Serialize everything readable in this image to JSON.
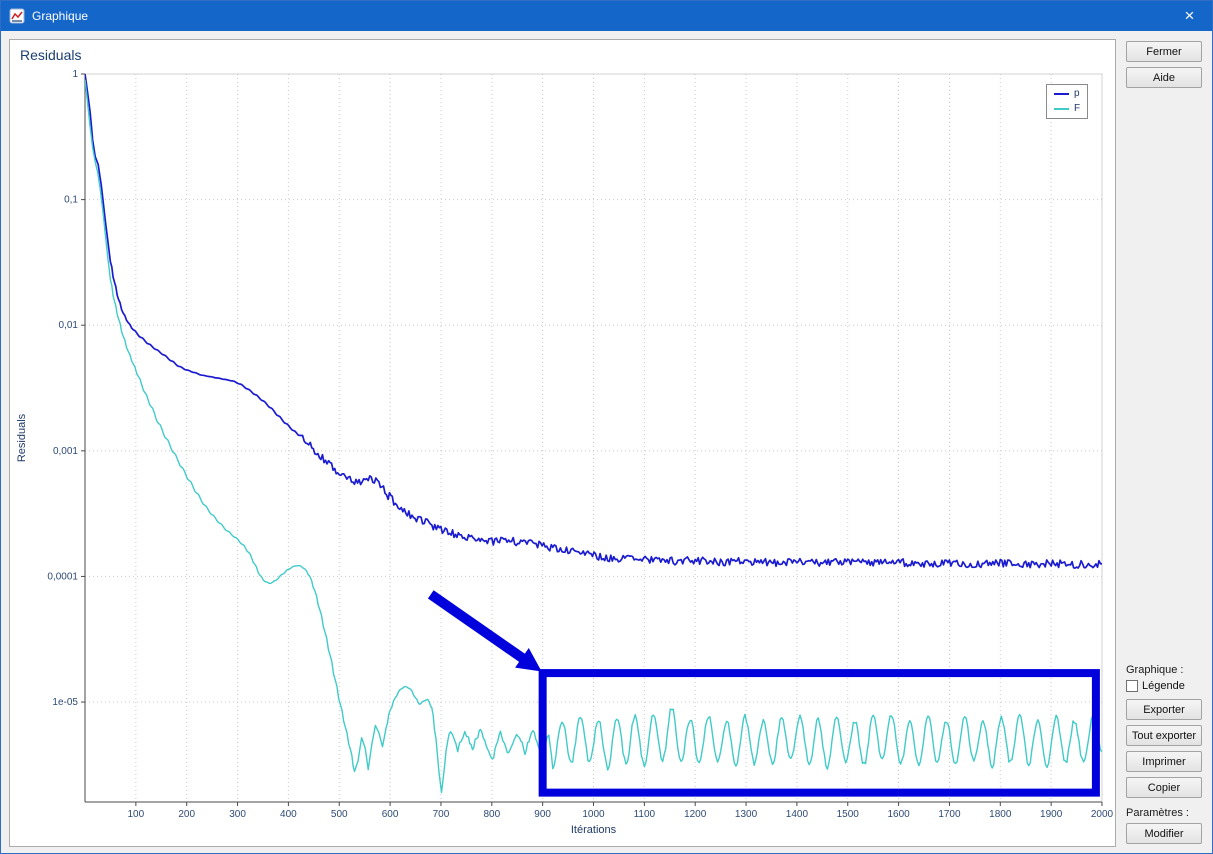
{
  "window": {
    "title": "Graphique",
    "close_glyph": "×"
  },
  "chart": {
    "title": "Residuals"
  },
  "sidebar": {
    "close_button": "Fermer",
    "help_button": "Aide",
    "graph_group_label": "Graphique :",
    "legend_checkbox_label": "Légende",
    "legend_checkbox_checked": false,
    "export_button": "Exporter",
    "export_all_button": "Tout exporter",
    "print_button": "Imprimer",
    "copy_button": "Copier",
    "params_group_label": "Paramètres :",
    "modify_button": "Modifier"
  },
  "chart_data": {
    "type": "line",
    "title": "Residuals",
    "xlabel": "Itérations",
    "ylabel": "Residuals",
    "y_scale": "log",
    "grid": "dotted",
    "legend_position": "top-right",
    "xlim": [
      0,
      2000
    ],
    "ylim": [
      1.6e-06,
      1
    ],
    "x_ticks": [
      100,
      200,
      300,
      400,
      500,
      600,
      700,
      800,
      900,
      1000,
      1100,
      1200,
      1300,
      1400,
      1500,
      1600,
      1700,
      1800,
      1900,
      2000
    ],
    "y_ticks": [
      {
        "value": 1,
        "label": "1"
      },
      {
        "value": 0.1,
        "label": "0,1"
      },
      {
        "value": 0.01,
        "label": "0,01"
      },
      {
        "value": 0.001,
        "label": "0,001"
      },
      {
        "value": 0.0001,
        "label": "0,0001"
      },
      {
        "value": 1e-05,
        "label": "1e-05"
      }
    ],
    "noise": {
      "p": {
        "start": 420,
        "amplitude": 0.07
      },
      "F": {
        "start": 700,
        "amplitude": 0.05
      }
    },
    "series": [
      {
        "name": "p",
        "color": "#1b1bd0",
        "points": [
          [
            0,
            1
          ],
          [
            5,
            0.72
          ],
          [
            10,
            0.5
          ],
          [
            15,
            0.3
          ],
          [
            20,
            0.22
          ],
          [
            26,
            0.19
          ],
          [
            32,
            0.13
          ],
          [
            38,
            0.08
          ],
          [
            44,
            0.05
          ],
          [
            50,
            0.032
          ],
          [
            58,
            0.022
          ],
          [
            66,
            0.016
          ],
          [
            75,
            0.0125
          ],
          [
            85,
            0.0105
          ],
          [
            95,
            0.0092
          ],
          [
            110,
            0.008
          ],
          [
            125,
            0.0071
          ],
          [
            140,
            0.0064
          ],
          [
            155,
            0.0058
          ],
          [
            170,
            0.0052
          ],
          [
            185,
            0.0047
          ],
          [
            200,
            0.0044
          ],
          [
            215,
            0.0042
          ],
          [
            230,
            0.004
          ],
          [
            245,
            0.0039
          ],
          [
            260,
            0.0038
          ],
          [
            275,
            0.0037
          ],
          [
            290,
            0.0036
          ],
          [
            305,
            0.0034
          ],
          [
            320,
            0.0031
          ],
          [
            335,
            0.0028
          ],
          [
            350,
            0.0025
          ],
          [
            365,
            0.0022
          ],
          [
            380,
            0.0019
          ],
          [
            395,
            0.00165
          ],
          [
            410,
            0.00145
          ],
          [
            425,
            0.00128
          ],
          [
            440,
            0.00112
          ],
          [
            455,
            0.00098
          ],
          [
            470,
            0.00086
          ],
          [
            485,
            0.00075
          ],
          [
            500,
            0.00066
          ],
          [
            515,
            0.0006
          ],
          [
            530,
            0.00056
          ],
          [
            545,
            0.00056
          ],
          [
            560,
            0.0006
          ],
          [
            572,
            0.00058
          ],
          [
            584,
            0.0005
          ],
          [
            596,
            0.00044
          ],
          [
            610,
            0.00039
          ],
          [
            625,
            0.00035
          ],
          [
            640,
            0.00031
          ],
          [
            655,
            0.00029
          ],
          [
            670,
            0.00027
          ],
          [
            685,
            0.00025
          ],
          [
            700,
            0.000235
          ],
          [
            720,
            0.00022
          ],
          [
            740,
            0.00021
          ],
          [
            760,
            0.0002
          ],
          [
            780,
            0.000195
          ],
          [
            800,
            0.00019
          ],
          [
            830,
            0.000192
          ],
          [
            860,
            0.000188
          ],
          [
            890,
            0.00018
          ],
          [
            920,
            0.00017
          ],
          [
            950,
            0.00016
          ],
          [
            980,
            0.000152
          ],
          [
            1010,
            0.000145
          ],
          [
            1040,
            0.00014
          ],
          [
            1080,
            0.000137
          ],
          [
            1120,
            0.000135
          ],
          [
            1160,
            0.000133
          ],
          [
            1200,
            0.000134
          ],
          [
            1250,
            0.000131
          ],
          [
            1300,
            0.000132
          ],
          [
            1350,
            0.000129
          ],
          [
            1400,
            0.000131
          ],
          [
            1450,
            0.000128
          ],
          [
            1500,
            0.00013
          ],
          [
            1550,
            0.000127
          ],
          [
            1600,
            0.000129
          ],
          [
            1650,
            0.000127
          ],
          [
            1700,
            0.000129
          ],
          [
            1750,
            0.000126
          ],
          [
            1800,
            0.000128
          ],
          [
            1850,
            0.000126
          ],
          [
            1900,
            0.000127
          ],
          [
            1950,
            0.000125
          ],
          [
            2000,
            0.000126
          ]
        ]
      },
      {
        "name": "F",
        "color": "#40cbc8",
        "points": [
          [
            0,
            0.9
          ],
          [
            5,
            0.6
          ],
          [
            10,
            0.38
          ],
          [
            15,
            0.26
          ],
          [
            20,
            0.2
          ],
          [
            25,
            0.165
          ],
          [
            30,
            0.12
          ],
          [
            35,
            0.082
          ],
          [
            40,
            0.053
          ],
          [
            45,
            0.034
          ],
          [
            50,
            0.023
          ],
          [
            58,
            0.0155
          ],
          [
            66,
            0.0112
          ],
          [
            75,
            0.0082
          ],
          [
            85,
            0.0062
          ],
          [
            95,
            0.0049
          ],
          [
            105,
            0.0039
          ],
          [
            118,
            0.0029
          ],
          [
            130,
            0.00225
          ],
          [
            145,
            0.00165
          ],
          [
            160,
            0.00125
          ],
          [
            175,
            0.00096
          ],
          [
            190,
            0.00074
          ],
          [
            205,
            0.00058
          ],
          [
            220,
            0.00046
          ],
          [
            235,
            0.00037
          ],
          [
            250,
            0.00031
          ],
          [
            265,
            0.000265
          ],
          [
            280,
            0.00023
          ],
          [
            295,
            0.000205
          ],
          [
            310,
            0.00018
          ],
          [
            322,
            0.000155
          ],
          [
            334,
            0.000125
          ],
          [
            344,
            0.000102
          ],
          [
            354,
            9.1e-05
          ],
          [
            364,
            8.8e-05
          ],
          [
            375,
            9.3e-05
          ],
          [
            388,
            0.000104
          ],
          [
            400,
            0.000114
          ],
          [
            412,
            0.000121
          ],
          [
            422,
            0.000122
          ],
          [
            432,
            0.000115
          ],
          [
            442,
            0.0001
          ],
          [
            452,
            7.7e-05
          ],
          [
            462,
            5.4e-05
          ],
          [
            472,
            3.6e-05
          ],
          [
            482,
            2.35e-05
          ],
          [
            492,
            1.5e-05
          ],
          [
            502,
            9.6e-06
          ],
          [
            512,
            6.3e-06
          ],
          [
            522,
            4.2e-06
          ],
          [
            530,
            2.8e-06
          ],
          [
            537,
            3.4e-06
          ],
          [
            544,
            5.2e-06
          ],
          [
            551,
            4.3e-06
          ],
          [
            557,
            2.9e-06
          ],
          [
            564,
            4.6e-06
          ],
          [
            571,
            6.5e-06
          ],
          [
            578,
            5.7e-06
          ],
          [
            585,
            4.4e-06
          ],
          [
            592,
            6.2e-06
          ],
          [
            600,
            8.6e-06
          ],
          [
            610,
            1.08e-05
          ],
          [
            620,
            1.26e-05
          ],
          [
            630,
            1.33e-05
          ],
          [
            640,
            1.27e-05
          ],
          [
            650,
            1.08e-05
          ],
          [
            658,
            9.6e-06
          ],
          [
            666,
            1.02e-05
          ],
          [
            674,
            1.05e-05
          ],
          [
            682,
            9e-06
          ],
          [
            690,
            5.2e-06
          ],
          [
            696,
            2.8e-06
          ],
          [
            701,
            1.9e-06
          ],
          [
            707,
            3.2e-06
          ],
          [
            713,
            5e-06
          ],
          [
            719,
            5.7e-06
          ],
          [
            726,
            4.9e-06
          ],
          [
            733,
            4.1e-06
          ],
          [
            740,
            5e-06
          ],
          [
            747,
            5.9e-06
          ],
          [
            754,
            5.1e-06
          ],
          [
            762,
            4.3e-06
          ],
          [
            770,
            5.3e-06
          ],
          [
            778,
            6.1e-06
          ],
          [
            786,
            5e-06
          ],
          [
            794,
            4e-06
          ],
          [
            801,
            3.5e-06
          ],
          [
            809,
            4.6e-06
          ],
          [
            817,
            5.6e-06
          ],
          [
            825,
            4.7e-06
          ],
          [
            833,
            3.8e-06
          ],
          [
            841,
            4.8e-06
          ],
          [
            849,
            5.7e-06
          ],
          [
            857,
            4.9e-06
          ],
          [
            865,
            4e-06
          ],
          [
            873,
            5e-06
          ],
          [
            881,
            5.8e-06
          ],
          [
            889,
            4.7e-06
          ],
          [
            897,
            3.7e-06
          ],
          [
            905,
            4.6e-06
          ],
          [
            912,
            5.5e-06
          ],
          [
            920,
            3.1e-06
          ],
          [
            938,
            7.2e-06
          ],
          [
            956,
            3.2e-06
          ],
          [
            974,
            7.6e-06
          ],
          [
            992,
            3.4e-06
          ],
          [
            1010,
            7e-06
          ],
          [
            1028,
            3e-06
          ],
          [
            1046,
            7.4e-06
          ],
          [
            1064,
            3.3e-06
          ],
          [
            1082,
            7.8e-06
          ],
          [
            1100,
            3.1e-06
          ],
          [
            1118,
            8.2e-06
          ],
          [
            1136,
            3.5e-06
          ],
          [
            1154,
            9e-06
          ],
          [
            1172,
            3.3e-06
          ],
          [
            1190,
            7.4e-06
          ],
          [
            1208,
            3.2e-06
          ],
          [
            1226,
            7.8e-06
          ],
          [
            1244,
            3.4e-06
          ],
          [
            1262,
            7.2e-06
          ],
          [
            1280,
            3.1e-06
          ],
          [
            1298,
            7.6e-06
          ],
          [
            1316,
            3.3e-06
          ],
          [
            1334,
            7e-06
          ],
          [
            1352,
            3.2e-06
          ],
          [
            1370,
            7.5e-06
          ],
          [
            1388,
            3.4e-06
          ],
          [
            1406,
            7.9e-06
          ],
          [
            1424,
            3.2e-06
          ],
          [
            1442,
            7.3e-06
          ],
          [
            1460,
            3e-06
          ],
          [
            1478,
            7.7e-06
          ],
          [
            1496,
            3.3e-06
          ],
          [
            1514,
            7.1e-06
          ],
          [
            1532,
            3.2e-06
          ],
          [
            1550,
            7.6e-06
          ],
          [
            1568,
            3.4e-06
          ],
          [
            1586,
            8e-06
          ],
          [
            1604,
            3.2e-06
          ],
          [
            1622,
            7.4e-06
          ],
          [
            1640,
            3.1e-06
          ],
          [
            1658,
            7.8e-06
          ],
          [
            1676,
            3.3e-06
          ],
          [
            1694,
            7.2e-06
          ],
          [
            1712,
            3.2e-06
          ],
          [
            1730,
            7.6e-06
          ],
          [
            1748,
            3.4e-06
          ],
          [
            1766,
            7e-06
          ],
          [
            1784,
            3.1e-06
          ],
          [
            1802,
            7.5e-06
          ],
          [
            1820,
            3.3e-06
          ],
          [
            1838,
            7.9e-06
          ],
          [
            1856,
            3.2e-06
          ],
          [
            1874,
            7.3e-06
          ],
          [
            1892,
            3e-06
          ],
          [
            1910,
            7.7e-06
          ],
          [
            1928,
            3.3e-06
          ],
          [
            1946,
            7.1e-06
          ],
          [
            1964,
            3.2e-06
          ],
          [
            1982,
            7.5e-06
          ],
          [
            2000,
            4e-06
          ]
        ]
      }
    ],
    "annotation": {
      "color": "#0000dd",
      "arrow": {
        "from": [
          680,
          7.2e-05
        ],
        "to": [
          898,
          1.75e-05
        ]
      },
      "box": {
        "x1": 900,
        "x2": 1988,
        "y1": 1.9e-06,
        "y2": 1.7e-05
      }
    }
  }
}
